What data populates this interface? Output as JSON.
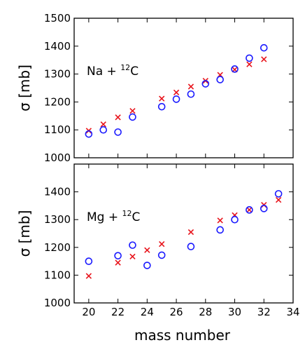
{
  "chart_data": [
    {
      "type": "scatter",
      "annotation": {
        "prefix": "Na + ",
        "superscript": "12",
        "suffix": "C"
      },
      "ylabel": "σ  [mb]",
      "xlabel": "",
      "xlim": [
        19,
        34
      ],
      "ylim": [
        1000,
        1500
      ],
      "xticks": [
        20,
        22,
        24,
        26,
        28,
        30,
        32,
        34
      ],
      "yticks": [
        1000,
        1100,
        1200,
        1300,
        1400,
        1500
      ],
      "x_tick_labels_shown": false,
      "series": [
        {
          "marker": "cross",
          "color": "#e8141c",
          "points": [
            [
              20,
              1097
            ],
            [
              21,
              1120
            ],
            [
              22,
              1145
            ],
            [
              23,
              1168
            ],
            [
              25,
              1212
            ],
            [
              26,
              1234
            ],
            [
              27,
              1255
            ],
            [
              28,
              1276
            ],
            [
              29,
              1297
            ],
            [
              30,
              1316
            ],
            [
              31,
              1335
            ],
            [
              32,
              1353
            ]
          ]
        },
        {
          "marker": "circle",
          "color": "#1a1aff",
          "points": [
            [
              20,
              1085
            ],
            [
              21,
              1100
            ],
            [
              22,
              1092
            ],
            [
              23,
              1146
            ],
            [
              25,
              1183
            ],
            [
              26,
              1210
            ],
            [
              27,
              1228
            ],
            [
              28,
              1265
            ],
            [
              29,
              1280
            ],
            [
              30,
              1318
            ],
            [
              31,
              1357
            ],
            [
              32,
              1394
            ]
          ]
        }
      ]
    },
    {
      "type": "scatter",
      "annotation": {
        "prefix": "Mg + ",
        "superscript": "12",
        "suffix": "C"
      },
      "ylabel": "σ  [mb]",
      "xlabel": "mass number",
      "xlim": [
        19,
        34
      ],
      "ylim": [
        1000,
        1500
      ],
      "xticks": [
        20,
        22,
        24,
        26,
        28,
        30,
        32,
        34
      ],
      "yticks": [
        1000,
        1100,
        1200,
        1300,
        1400
      ],
      "x_tick_labels_shown": true,
      "series": [
        {
          "marker": "cross",
          "color": "#e8141c",
          "points": [
            [
              20,
              1097
            ],
            [
              22,
              1145
            ],
            [
              23,
              1167
            ],
            [
              24,
              1190
            ],
            [
              25,
              1212
            ],
            [
              27,
              1255
            ],
            [
              29,
              1297
            ],
            [
              30,
              1316
            ],
            [
              31,
              1335
            ],
            [
              32,
              1353
            ],
            [
              33,
              1371
            ]
          ]
        },
        {
          "marker": "circle",
          "color": "#1a1aff",
          "points": [
            [
              20,
              1150
            ],
            [
              22,
              1170
            ],
            [
              23,
              1208
            ],
            [
              24,
              1135
            ],
            [
              25,
              1172
            ],
            [
              27,
              1203
            ],
            [
              29,
              1263
            ],
            [
              30,
              1300
            ],
            [
              31,
              1335
            ],
            [
              32,
              1340
            ],
            [
              33,
              1393
            ]
          ]
        }
      ]
    }
  ]
}
